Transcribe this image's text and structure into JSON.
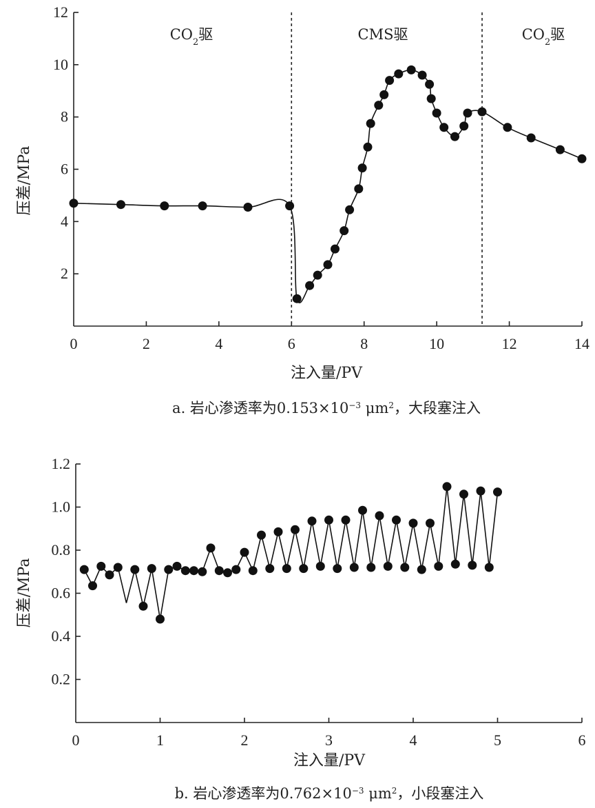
{
  "chart_data": [
    {
      "type": "line",
      "caption": {
        "prefix": "a. 岩心渗透率为0.153×10",
        "exp": "−3",
        "mid": " μm",
        "exp2": "2",
        "suffix": "，大段塞注入"
      },
      "xlabel": "注入量/PV",
      "ylabel": "压差/MPa",
      "xlim": [
        0,
        14
      ],
      "ylim": [
        0,
        12
      ],
      "xticks": [
        0,
        2,
        4,
        6,
        8,
        10,
        12,
        14
      ],
      "yticks": [
        2,
        4,
        6,
        8,
        10,
        12
      ],
      "yticks_labels": [
        "2",
        "4",
        "6",
        "8",
        "10",
        "12"
      ],
      "regions": [
        {
          "base": "CO",
          "sub": "2",
          "rest": "驱"
        },
        {
          "base": "CMS驱",
          "sub": "",
          "rest": ""
        },
        {
          "base": "CO",
          "sub": "2",
          "rest": "驱"
        }
      ],
      "dividers": [
        6.0,
        11.25
      ],
      "series": [
        {
          "x": [
            0.0,
            1.3,
            2.5,
            3.55,
            4.8,
            5.95,
            6.15,
            6.5,
            6.72,
            7.0,
            7.2,
            7.45,
            7.6,
            7.85,
            7.95,
            8.1,
            8.18,
            8.4,
            8.55,
            8.7,
            8.95,
            9.3,
            9.6,
            9.8,
            9.85,
            10.0,
            10.2,
            10.5,
            10.75,
            10.85,
            11.25,
            11.95,
            12.6,
            13.4,
            14.0
          ],
          "y": [
            4.7,
            4.65,
            4.6,
            4.6,
            4.55,
            4.6,
            1.05,
            1.55,
            1.95,
            2.35,
            2.95,
            3.65,
            4.45,
            5.25,
            6.05,
            6.85,
            7.75,
            8.45,
            8.85,
            9.4,
            9.65,
            9.8,
            9.6,
            9.25,
            8.7,
            8.15,
            7.6,
            7.25,
            7.65,
            8.15,
            8.2,
            7.6,
            7.2,
            6.75,
            6.4
          ]
        }
      ]
    },
    {
      "type": "line",
      "caption": {
        "prefix": "b. 岩心渗透率为0.762×10",
        "exp": "−3",
        "mid": " μm",
        "exp2": "2",
        "suffix": "，小段塞注入"
      },
      "xlabel": "注入量/PV",
      "ylabel": "压差/MPa",
      "xlim": [
        0,
        6
      ],
      "ylim": [
        0,
        1.2
      ],
      "xticks": [
        0,
        1,
        2,
        3,
        4,
        5,
        6
      ],
      "yticks": [
        0.2,
        0.4,
        0.6,
        0.8,
        1.0,
        1.2
      ],
      "yticks_labels": [
        "0.2",
        "0.4",
        "0.6",
        "0.8",
        "1.0",
        "1.2"
      ],
      "series": [
        {
          "x": [
            0.1,
            0.2,
            0.3,
            0.4,
            0.5,
            0.6,
            0.7,
            0.8,
            0.9,
            1.0,
            1.1,
            1.2,
            1.3,
            1.4,
            1.5,
            1.6,
            1.7,
            1.8,
            1.9,
            2.0,
            2.1,
            2.2,
            2.3,
            2.4,
            2.5,
            2.6,
            2.7,
            2.8,
            2.9,
            3.0,
            3.1,
            3.2,
            3.3,
            3.4,
            3.5,
            3.6,
            3.7,
            3.8,
            3.9,
            4.0,
            4.1,
            4.2,
            4.3,
            4.4,
            4.5,
            4.6,
            4.7,
            4.8,
            4.9,
            5.0
          ],
          "y": [
            0.71,
            0.635,
            0.725,
            0.685,
            0.72,
            0.555,
            0.71,
            0.54,
            0.715,
            0.48,
            0.71,
            0.725,
            0.705,
            0.705,
            0.7,
            0.81,
            0.705,
            0.695,
            0.71,
            0.79,
            0.705,
            0.87,
            0.715,
            0.885,
            0.715,
            0.895,
            0.715,
            0.935,
            0.725,
            0.94,
            0.715,
            0.94,
            0.72,
            0.985,
            0.72,
            0.96,
            0.725,
            0.94,
            0.72,
            0.925,
            0.71,
            0.925,
            0.725,
            1.095,
            0.735,
            1.06,
            0.73,
            1.075,
            0.72,
            1.07
          ],
          "markers": [
            true,
            true,
            true,
            true,
            true,
            false,
            true,
            true,
            true,
            true,
            true,
            true,
            true,
            true,
            true,
            true,
            true,
            true,
            true,
            true,
            true,
            true,
            true,
            true,
            true,
            true,
            true,
            true,
            true,
            true,
            true,
            true,
            true,
            true,
            true,
            true,
            true,
            true,
            true,
            true,
            true,
            true,
            true,
            true,
            true,
            true,
            true,
            true,
            true,
            true
          ]
        }
      ]
    }
  ]
}
